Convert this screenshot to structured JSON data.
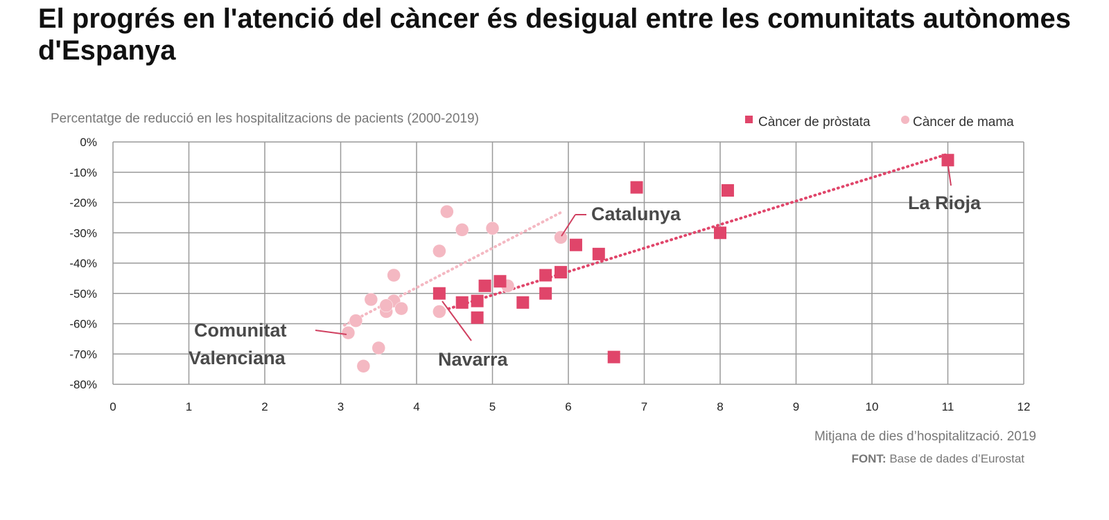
{
  "chart_data": {
    "type": "scatter",
    "title": "El progrés en l'atenció del càncer és desigual entre les comunitats autònomes d'Espanya",
    "subtitle": "Percentatge de reducció en les hospitalitzacions de pacients (2000-2019)",
    "xlabel": "Mitjana de dies d’hospitalització. 2019",
    "source_label": "FONT:",
    "source": "Base de dades d’Eurostat",
    "xlim": [
      0,
      12
    ],
    "ylim": [
      -80,
      0
    ],
    "xticks": [
      "0",
      "1",
      "2",
      "3",
      "4",
      "5",
      "6",
      "7",
      "8",
      "9",
      "10",
      "11",
      "12"
    ],
    "yticks": [
      "0%",
      "-10%",
      "-20%",
      "-30%",
      "-40%",
      "-50%",
      "-60%",
      "-70%",
      "-80%"
    ],
    "grid": true,
    "legend_position": "top-right",
    "series": [
      {
        "name": "Càncer de pròstata",
        "color": "#e0456a",
        "marker": "square",
        "points": [
          [
            6.9,
            -15
          ],
          [
            8.1,
            -16
          ],
          [
            11,
            -6
          ],
          [
            8,
            -30
          ],
          [
            6.1,
            -34
          ],
          [
            6.4,
            -37
          ],
          [
            5.9,
            -43
          ],
          [
            5.7,
            -44
          ],
          [
            5.1,
            -46
          ],
          [
            4.9,
            -47.5
          ],
          [
            4.3,
            -50
          ],
          [
            5.7,
            -50
          ],
          [
            4.6,
            -53
          ],
          [
            4.8,
            -52.5
          ],
          [
            5.4,
            -53
          ],
          [
            4.8,
            -58
          ],
          [
            6.6,
            -71
          ]
        ],
        "trend": [
          [
            4.3,
            -56
          ],
          [
            11,
            -4
          ]
        ]
      },
      {
        "name": "Càncer de mama",
        "color": "#f4b8c2",
        "marker": "circle",
        "points": [
          [
            4.4,
            -23
          ],
          [
            4.6,
            -29
          ],
          [
            5,
            -28.5
          ],
          [
            5.9,
            -31.5
          ],
          [
            4.3,
            -36
          ],
          [
            3.7,
            -44
          ],
          [
            3.4,
            -52
          ],
          [
            3.7,
            -52.5
          ],
          [
            3.6,
            -56
          ],
          [
            3.8,
            -55
          ],
          [
            3.6,
            -54
          ],
          [
            5.2,
            -47.5
          ],
          [
            4.3,
            -56
          ],
          [
            3.2,
            -59
          ],
          [
            3.1,
            -63
          ],
          [
            3.5,
            -68
          ],
          [
            3.3,
            -74
          ]
        ],
        "trend": [
          [
            3.05,
            -60.5
          ],
          [
            5.9,
            -23.3
          ]
        ]
      }
    ],
    "annotations": [
      {
        "text": "Catalunya",
        "point": [
          5.9,
          -31.5
        ]
      },
      {
        "text": "La Rioja",
        "point": [
          11,
          -6
        ]
      },
      {
        "text": "Comunitat",
        "text2": "Valenciana",
        "point": [
          3.1,
          -63
        ]
      },
      {
        "text": "Navarra",
        "point": [
          4.3,
          -50
        ]
      }
    ]
  }
}
